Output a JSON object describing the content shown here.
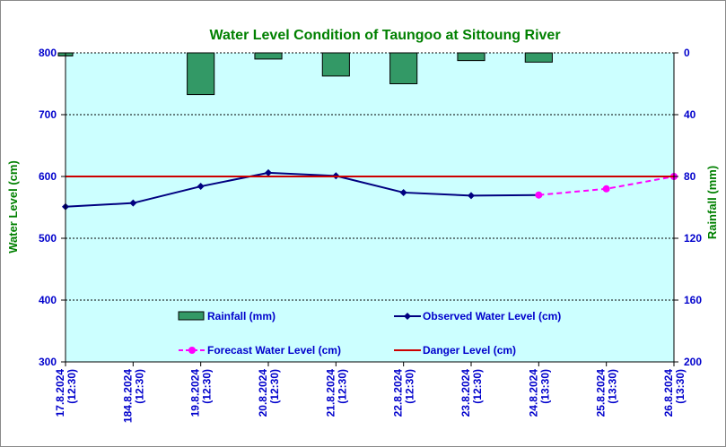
{
  "chart_data": {
    "type": "line",
    "title": "Water Level Condition of Taungoo at  Sittoung River",
    "ylabel": "Water Level (cm)",
    "y2label": "Rainfall (mm)",
    "ylim": [
      300,
      800
    ],
    "y_ticks": [
      300,
      400,
      500,
      600,
      700,
      800
    ],
    "y2lim": [
      0,
      200
    ],
    "y2_reversed": true,
    "y2_ticks": [
      0,
      40,
      80,
      120,
      160,
      200
    ],
    "grid": true,
    "categories": [
      [
        "17.8.2024",
        "(12:30)"
      ],
      [
        "184.8.2024",
        "(12:30)"
      ],
      [
        "19.8.2024",
        "(12:30)"
      ],
      [
        "20.8.2024",
        "(12:30)"
      ],
      [
        "21.8.2024",
        "(12:30)"
      ],
      [
        "22.8.2024",
        "(12:30)"
      ],
      [
        "23.8.2024",
        "(12:30)"
      ],
      [
        "24.8.2024",
        "(13:30)"
      ],
      [
        "25.8.2024",
        "(13:30)"
      ],
      [
        "26.8.2024",
        "(13:30)"
      ]
    ],
    "series": [
      {
        "name": "Rainfall (mm)",
        "kind": "bar",
        "axis": "y2",
        "color": "#339966",
        "values": [
          2,
          null,
          27,
          4,
          15,
          20,
          5,
          6,
          null,
          null
        ]
      },
      {
        "name": "Observed Water Level (cm)",
        "kind": "line",
        "color": "#000080",
        "marker": "diamond",
        "values": [
          551,
          557,
          584,
          606,
          601,
          574,
          569,
          570,
          null,
          null
        ]
      },
      {
        "name": "Forecast Water Level (cm)",
        "kind": "line",
        "dashed": true,
        "color": "#ff00ff",
        "marker": "circle",
        "values": [
          null,
          null,
          null,
          null,
          null,
          null,
          null,
          570,
          580,
          600
        ]
      },
      {
        "name": "Danger Level (cm)",
        "kind": "hline",
        "color": "#cc0000",
        "value": 600
      }
    ],
    "legend": [
      "Rainfall (mm)",
      "Observed Water Level (cm)",
      "Forecast Water Level (cm)",
      "Danger Level (cm)"
    ],
    "legend_position": "inside-bottom",
    "colors": {
      "plot_background": "#ccffff",
      "title": "#008000",
      "ticks": "#0000cc"
    }
  }
}
